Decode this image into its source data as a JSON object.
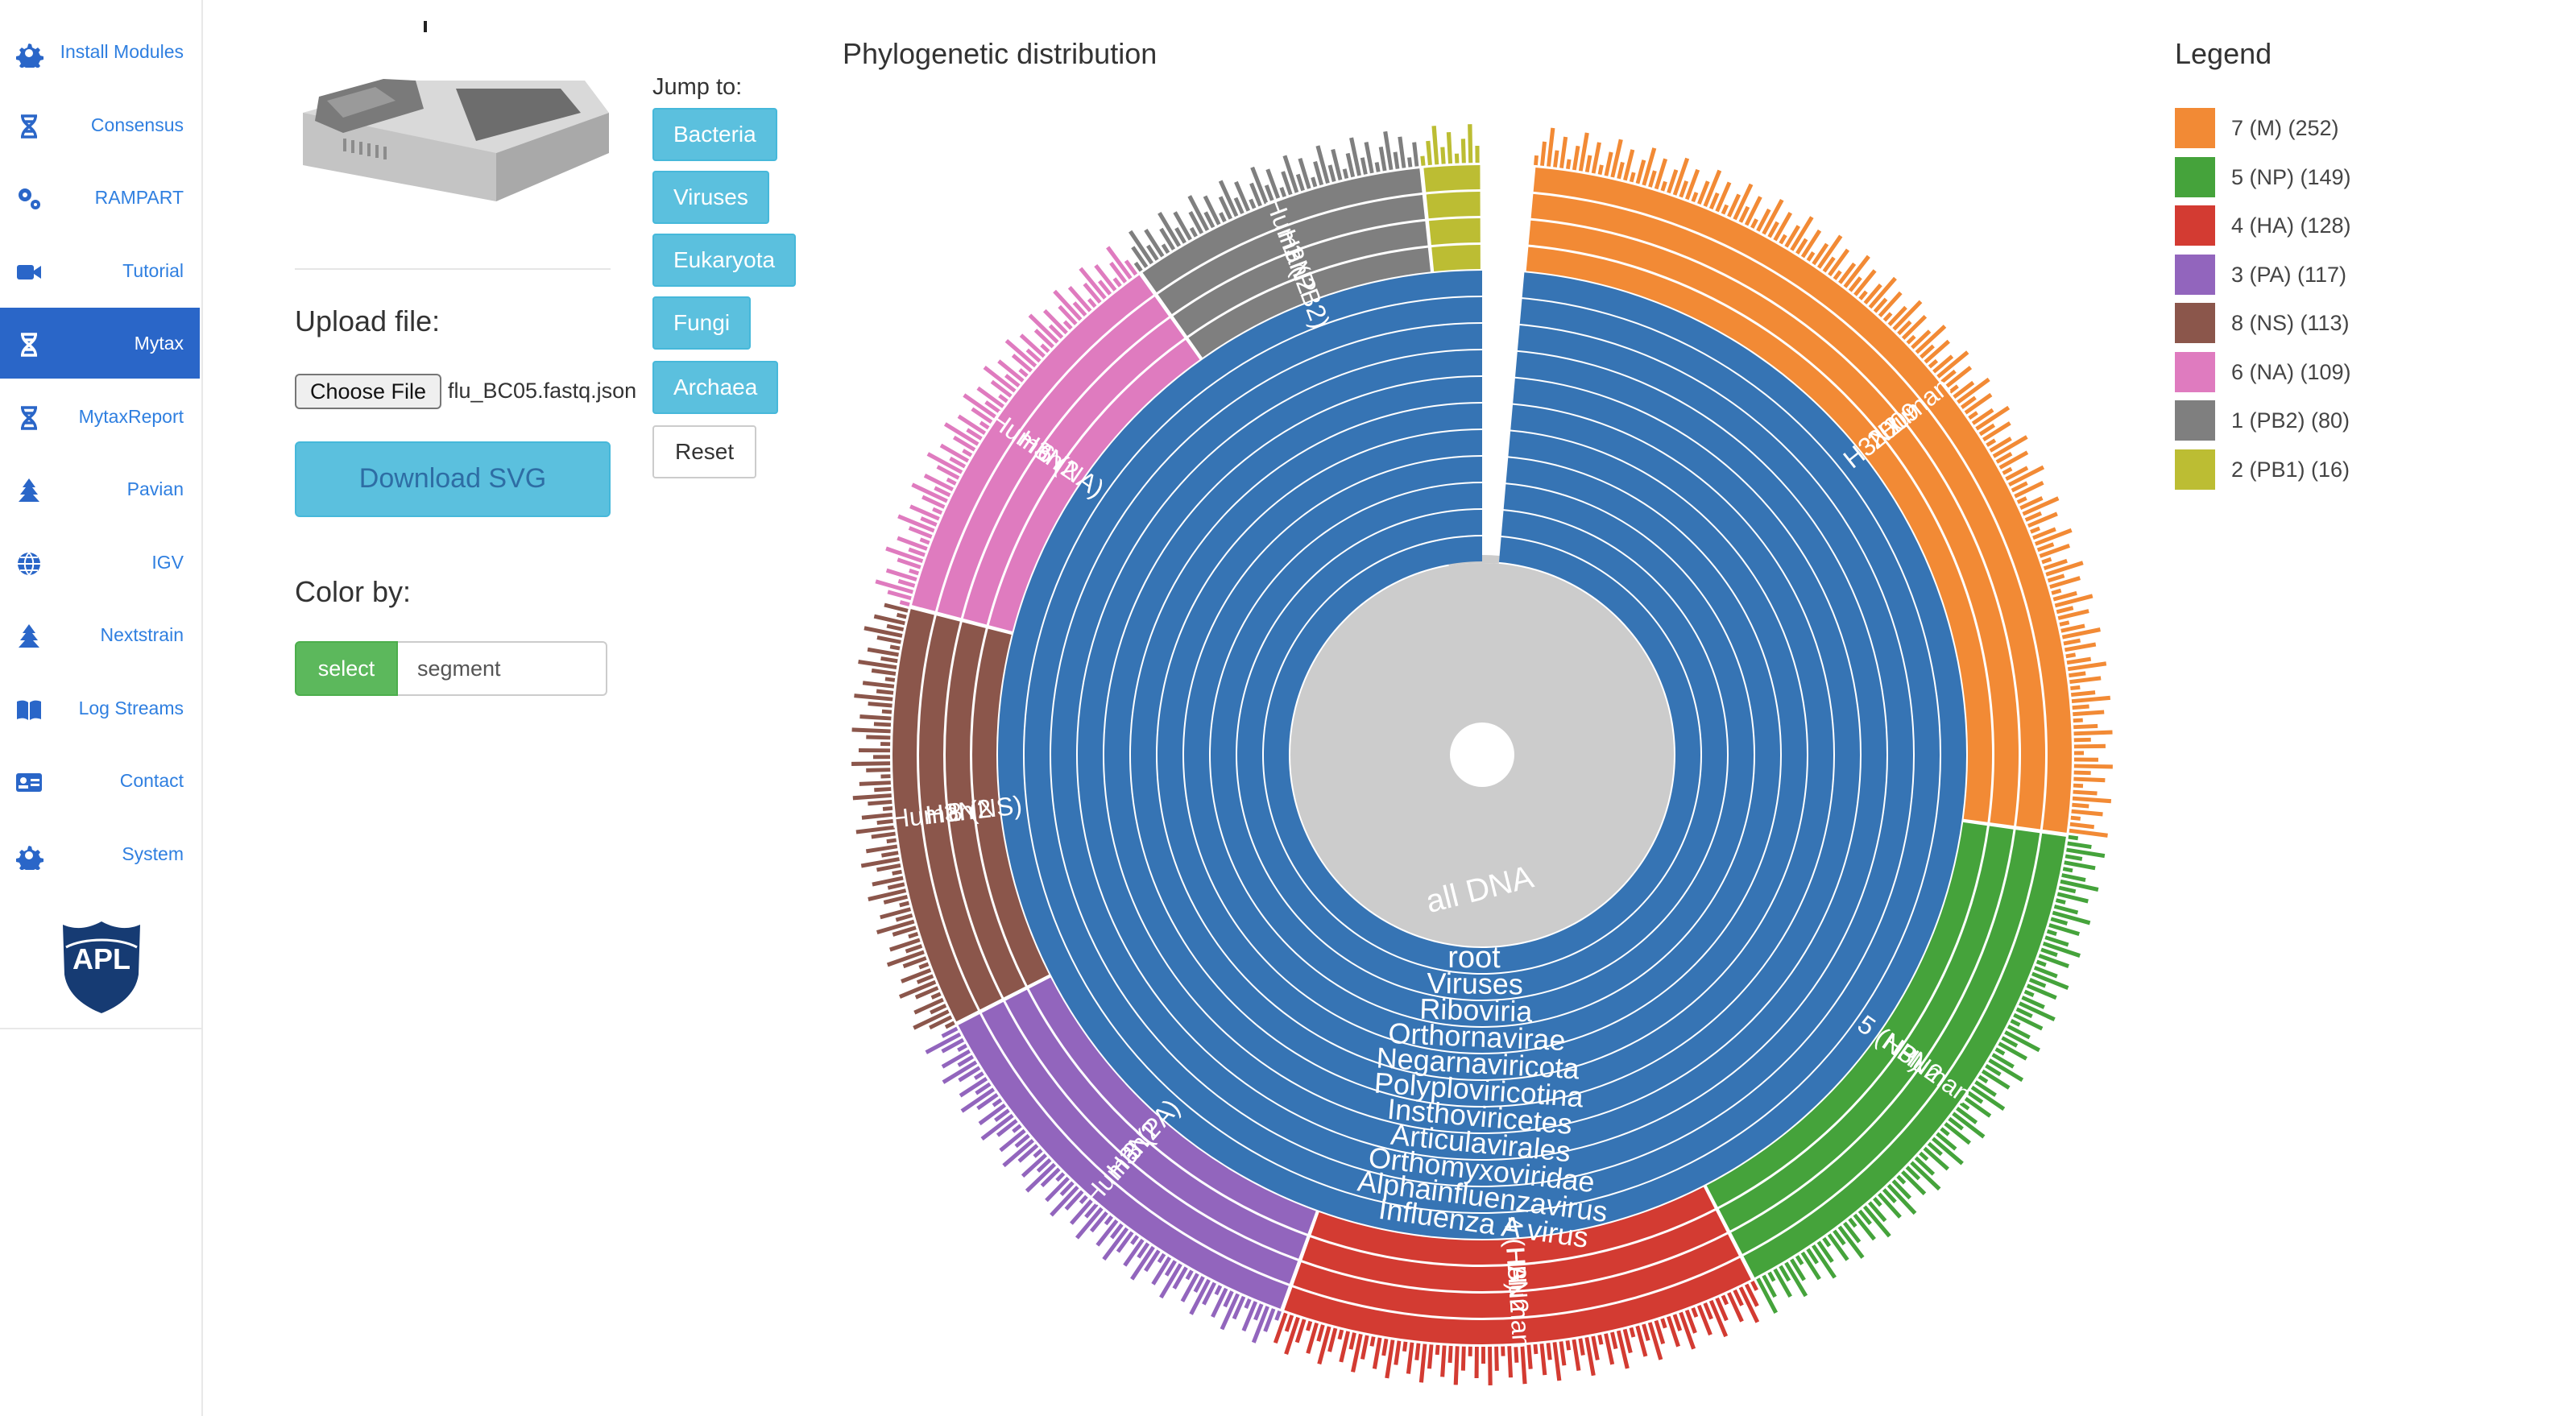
{
  "sidebar": {
    "items": [
      {
        "label": "Install Modules",
        "icon": "gear-icon",
        "active": false
      },
      {
        "label": "Consensus",
        "icon": "dna-icon",
        "active": false
      },
      {
        "label": "RAMPART",
        "icon": "gears-icon",
        "active": false
      },
      {
        "label": "Tutorial",
        "icon": "video-camera-icon",
        "active": false
      },
      {
        "label": "Mytax",
        "icon": "dna-icon",
        "active": true
      },
      {
        "label": "MytaxReport",
        "icon": "dna-icon",
        "active": false
      },
      {
        "label": "Pavian",
        "icon": "tree-icon",
        "active": false
      },
      {
        "label": "IGV",
        "icon": "globe-icon",
        "active": false
      },
      {
        "label": "Nextstrain",
        "icon": "tree-icon",
        "active": false
      },
      {
        "label": "Log Streams",
        "icon": "book-icon",
        "active": false
      },
      {
        "label": "Contact",
        "icon": "id-card-icon",
        "active": false
      },
      {
        "label": "System",
        "icon": "gear-icon",
        "active": false
      }
    ],
    "logo_text": "APL"
  },
  "controls": {
    "upload_heading": "Upload file:",
    "choose_file_label": "Choose File",
    "file_name": "flu_BC05.fastq.json",
    "download_label": "Download SVG",
    "color_by_heading": "Color by:",
    "select_label": "select",
    "color_by_value": "segment"
  },
  "jump": {
    "label": "Jump to:",
    "buttons": [
      "Bacteria",
      "Viruses",
      "Eukaryota",
      "Fungi",
      "Archaea"
    ],
    "reset_label": "Reset"
  },
  "chart": {
    "title": "Phylogenetic distribution",
    "legend_title": "Legend"
  },
  "colors": {
    "primary": "#2a66c8",
    "link": "#2f7fe0",
    "info_button": "#5bc0de",
    "success_button": "#5cb85c",
    "core_blue": "#3674b4",
    "root_gray": "#cccccc"
  },
  "chart_data": {
    "type": "sunburst",
    "center_label": "all DNA",
    "lineage": [
      "root",
      "Viruses",
      "Riboviria",
      "Orthornavirae",
      "Negarnaviricota",
      "Polyploviricotina",
      "Insthoviricetes",
      "Articulavirales",
      "Orthomyxoviridae",
      "Alphainfluenzavirus",
      "Influenza A virus"
    ],
    "segments": [
      {
        "name": "7 (M)",
        "count": 252,
        "color": "#f28a35",
        "labels": [
          "H3N2",
          "2009",
          "Human"
        ]
      },
      {
        "name": "5 (NP)",
        "count": 149,
        "color": "#45a33b",
        "labels": [
          "5 (NP)",
          "H3N2",
          "Human"
        ]
      },
      {
        "name": "4 (HA)",
        "count": 128,
        "color": "#d33b32",
        "labels": [
          "4 (HA)",
          "H3N2",
          "Human"
        ]
      },
      {
        "name": "3 (PA)",
        "count": 117,
        "color": "#9265bd",
        "labels": [
          "3 (PA)",
          "H3N2",
          "Human"
        ]
      },
      {
        "name": "8 (NS)",
        "count": 113,
        "color": "#8b564b",
        "labels": [
          "8 (NS)",
          "H3N2",
          "Human"
        ]
      },
      {
        "name": "6 (NA)",
        "count": 109,
        "color": "#df7bbf",
        "labels": [
          "6 (NA)",
          "H3N2",
          "Human"
        ]
      },
      {
        "name": "1 (PB2)",
        "count": 80,
        "color": "#7f7f7f",
        "labels": [
          "1 (PB2)",
          "H3N2",
          "Human"
        ]
      },
      {
        "name": "2 (PB1)",
        "count": 16,
        "color": "#bcbd33",
        "labels": []
      }
    ],
    "legend": [
      {
        "label": "7 (M) (252)",
        "color": "#f28a35"
      },
      {
        "label": "5 (NP) (149)",
        "color": "#45a33b"
      },
      {
        "label": "4 (HA) (128)",
        "color": "#d33b32"
      },
      {
        "label": "3 (PA) (117)",
        "color": "#9265bd"
      },
      {
        "label": "8 (NS) (113)",
        "color": "#8b564b"
      },
      {
        "label": "6 (NA) (109)",
        "color": "#df7bbf"
      },
      {
        "label": "1 (PB2) (80)",
        "color": "#7f7f7f"
      },
      {
        "label": "2 (PB1) (16)",
        "color": "#bcbd33"
      }
    ]
  }
}
